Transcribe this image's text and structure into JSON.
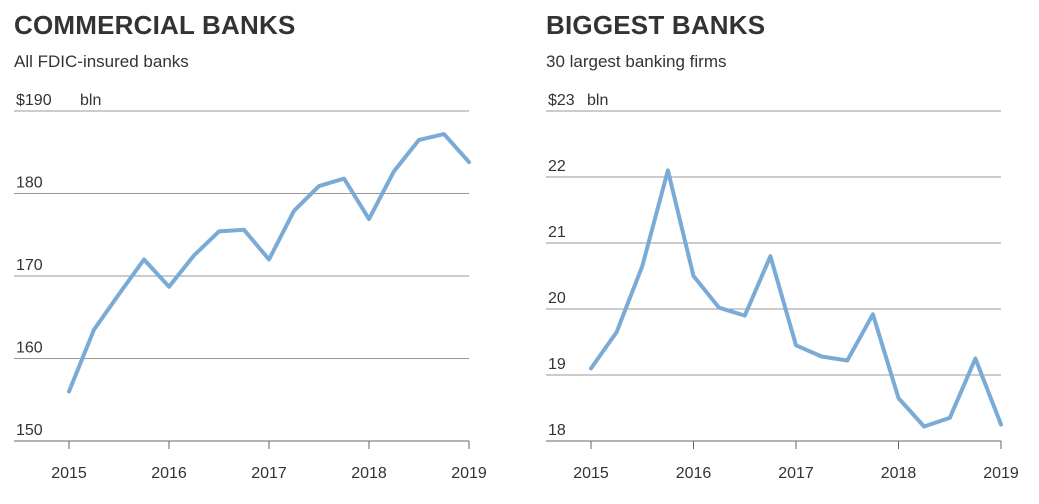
{
  "chart_data": [
    {
      "type": "line",
      "title": "COMMERCIAL BANKS",
      "subtitle": "All FDIC-insured banks",
      "unit_label": "bln",
      "top_label": "$190",
      "xlabel": "",
      "ylabel": "",
      "x": [
        2015.0,
        2015.25,
        2015.5,
        2015.75,
        2016.0,
        2016.25,
        2016.5,
        2016.75,
        2017.0,
        2017.25,
        2017.5,
        2017.75,
        2018.0,
        2018.25,
        2018.5,
        2018.75,
        2019.0
      ],
      "series": [
        {
          "values": [
            156.0,
            163.5,
            167.8,
            172.0,
            168.7,
            172.5,
            175.4,
            175.6,
            172.0,
            177.9,
            180.9,
            181.8,
            176.9,
            182.7,
            186.5,
            187.2,
            183.8
          ],
          "color": "#7aaad6"
        }
      ],
      "ylim": [
        150,
        190
      ],
      "yticks": [
        150,
        160,
        170,
        180,
        190
      ],
      "ytick_labels": [
        "150",
        "160",
        "170",
        "180",
        "$190"
      ],
      "xticks": [
        2015,
        2016,
        2017,
        2018,
        2019
      ],
      "xtick_labels": [
        "2015",
        "2016",
        "2017",
        "2018",
        "2019"
      ],
      "grid": true,
      "gridline_color": "#999999",
      "line_color": "#7aaad6"
    },
    {
      "type": "line",
      "title": "BIGGEST BANKS",
      "subtitle": "30 largest banking firms",
      "unit_label": "bln",
      "top_label": "$23",
      "xlabel": "",
      "ylabel": "",
      "x": [
        2015.0,
        2015.25,
        2015.5,
        2015.75,
        2016.0,
        2016.25,
        2016.5,
        2016.75,
        2017.0,
        2017.25,
        2017.5,
        2017.75,
        2018.0,
        2018.25,
        2018.5,
        2018.75,
        2019.0
      ],
      "series": [
        {
          "values": [
            19.1,
            19.65,
            20.65,
            22.1,
            20.5,
            20.02,
            19.9,
            20.8,
            19.45,
            19.28,
            19.22,
            19.92,
            18.65,
            18.22,
            18.35,
            19.25,
            18.25
          ],
          "color": "#7aaad6"
        }
      ],
      "ylim": [
        18,
        23
      ],
      "yticks": [
        18,
        19,
        20,
        21,
        22,
        23
      ],
      "ytick_labels": [
        "18",
        "19",
        "20",
        "21",
        "22",
        "$23"
      ],
      "xticks": [
        2015,
        2016,
        2017,
        2018,
        2019
      ],
      "xtick_labels": [
        "2015",
        "2016",
        "2017",
        "2018",
        "2019"
      ],
      "grid": true,
      "gridline_color": "#999999",
      "line_color": "#7aaad6"
    }
  ]
}
